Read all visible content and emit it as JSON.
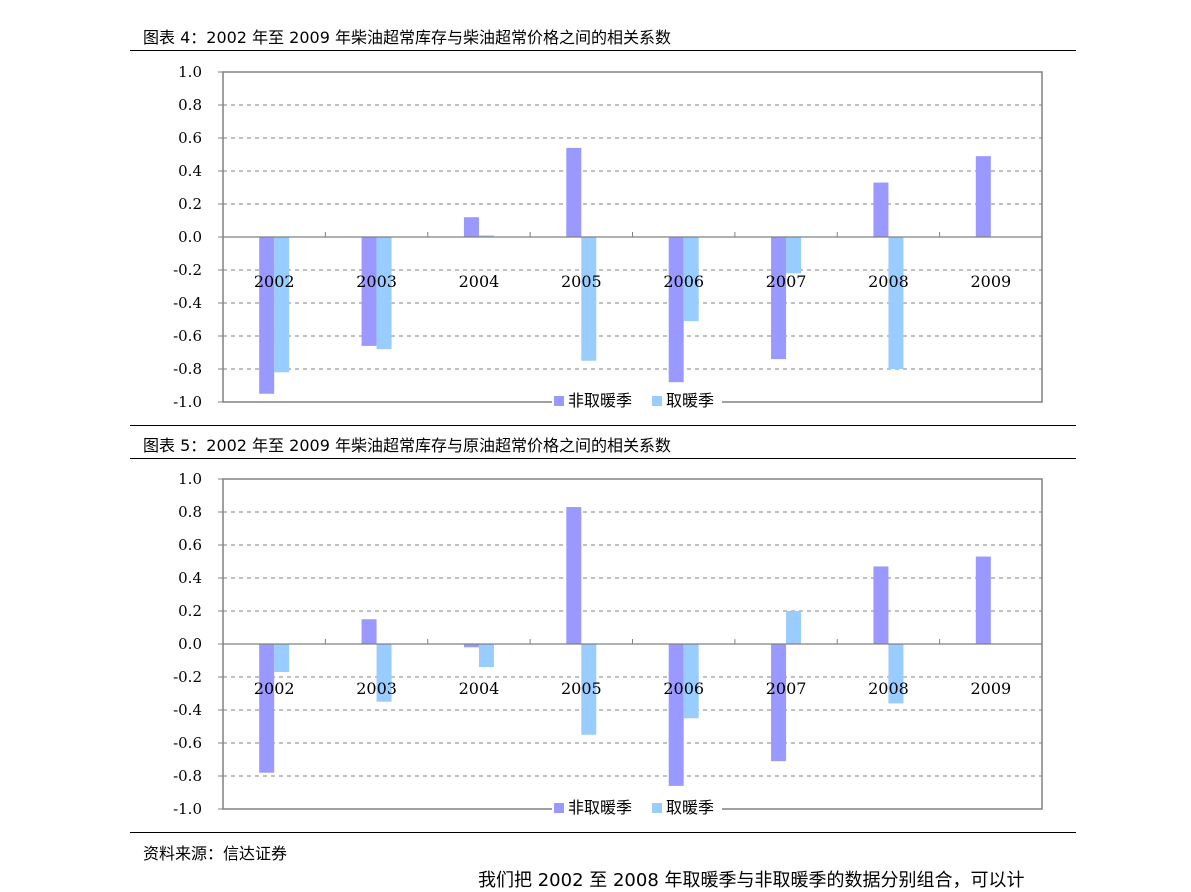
{
  "captions": {
    "fig4": "图表 4：2002 年至 2009 年柴油超常库存与柴油超常价格之间的相关系数",
    "fig5": "图表 5：2002 年至 2009 年柴油超常库存与原油超常价格之间的相关系数"
  },
  "source": "资料来源：信达证券",
  "bottom_text": "我们把 2002 至 2008 年取暖季与非取暖季的数据分别组合，可以计",
  "colors": {
    "non_heating": "#9999ff",
    "heating": "#99ccff",
    "grid": "#808080"
  },
  "chart_data": [
    {
      "type": "bar",
      "title": "",
      "categories": [
        "2002",
        "2003",
        "2004",
        "2005",
        "2006",
        "2007",
        "2008",
        "2009"
      ],
      "ylim": [
        -1.0,
        1.0
      ],
      "yticks": [
        "1.0",
        "0.8",
        "0.6",
        "0.4",
        "0.2",
        "0.0",
        "-0.2",
        "-0.4",
        "-0.6",
        "-0.8",
        "-1.0"
      ],
      "grid": true,
      "legend": "bottom",
      "series": [
        {
          "name": "非取暖季",
          "values": [
            -0.95,
            -0.66,
            0.12,
            0.54,
            -0.88,
            -0.74,
            0.33,
            0.49
          ]
        },
        {
          "name": "取暖季",
          "values": [
            -0.82,
            -0.68,
            0.01,
            -0.75,
            -0.51,
            -0.22,
            -0.8,
            null
          ]
        }
      ]
    },
    {
      "type": "bar",
      "title": "",
      "categories": [
        "2002",
        "2003",
        "2004",
        "2005",
        "2006",
        "2007",
        "2008",
        "2009"
      ],
      "ylim": [
        -1.0,
        1.0
      ],
      "yticks": [
        "1.0",
        "0.8",
        "0.6",
        "0.4",
        "0.2",
        "0.0",
        "-0.2",
        "-0.4",
        "-0.6",
        "-0.8",
        "-1.0"
      ],
      "grid": true,
      "legend": "bottom",
      "series": [
        {
          "name": "非取暖季",
          "values": [
            -0.78,
            0.15,
            -0.02,
            0.83,
            -0.86,
            -0.71,
            0.47,
            0.53
          ]
        },
        {
          "name": "取暖季",
          "values": [
            -0.17,
            -0.35,
            -0.14,
            -0.55,
            -0.45,
            0.2,
            -0.36,
            null
          ]
        }
      ]
    }
  ]
}
